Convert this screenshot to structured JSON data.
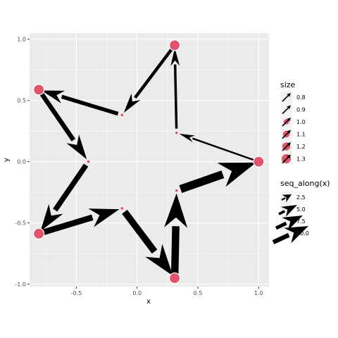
{
  "chart_data": {
    "type": "scatter",
    "xlabel": "x",
    "ylabel": "y",
    "xlim": [
      -0.885,
      1.085
    ],
    "ylim": [
      -1.02,
      1.05
    ],
    "x_ticks": [
      -0.5,
      0.0,
      0.5,
      1.0
    ],
    "x_tick_labels": [
      "-0.5",
      "0.0",
      "0.5",
      "1.0"
    ],
    "y_ticks": [
      -1.0,
      -0.5,
      0.0,
      0.5,
      1.0
    ],
    "y_tick_labels": [
      "-1.0",
      "-0.5",
      "0.0",
      "0.5",
      "1.0"
    ],
    "grid": true,
    "point_color": "#DF536B",
    "arrow_color": "#000000",
    "panel_color": "#EBEBEB",
    "points": [
      {
        "x": 1.0,
        "y": 0.0,
        "size": 1.3
      },
      {
        "x": 0.3244,
        "y": 0.2357,
        "size": 0.7
      },
      {
        "x": 0.309,
        "y": 0.951,
        "size": 1.3
      },
      {
        "x": -0.1239,
        "y": 0.3813,
        "size": 0.7
      },
      {
        "x": -0.809,
        "y": 0.5878,
        "size": 1.3
      },
      {
        "x": -0.4009,
        "y": 0.0,
        "size": 0.7
      },
      {
        "x": -0.809,
        "y": -0.5878,
        "size": 1.3
      },
      {
        "x": -0.1239,
        "y": -0.3813,
        "size": 0.7
      },
      {
        "x": 0.309,
        "y": -0.951,
        "size": 1.3
      },
      {
        "x": 0.3244,
        "y": -0.2357,
        "size": 0.7
      }
    ],
    "arrows": [
      {
        "from": [
          1.0,
          0.0
        ],
        "to": [
          0.3244,
          0.2357
        ],
        "seq": 1
      },
      {
        "from": [
          0.3244,
          0.2357
        ],
        "to": [
          0.309,
          0.951
        ],
        "seq": 2
      },
      {
        "from": [
          0.309,
          0.951
        ],
        "to": [
          -0.1239,
          0.3813
        ],
        "seq": 3
      },
      {
        "from": [
          -0.1239,
          0.3813
        ],
        "to": [
          -0.809,
          0.5878
        ],
        "seq": 4
      },
      {
        "from": [
          -0.809,
          0.5878
        ],
        "to": [
          -0.4009,
          0.0
        ],
        "seq": 5
      },
      {
        "from": [
          -0.4009,
          0.0
        ],
        "to": [
          -0.809,
          -0.5878
        ],
        "seq": 6
      },
      {
        "from": [
          -0.809,
          -0.5878
        ],
        "to": [
          -0.1239,
          -0.3813
        ],
        "seq": 7
      },
      {
        "from": [
          -0.1239,
          -0.3813
        ],
        "to": [
          0.309,
          -0.951
        ],
        "seq": 8
      },
      {
        "from": [
          0.309,
          -0.951
        ],
        "to": [
          0.3244,
          -0.2357
        ],
        "seq": 9
      },
      {
        "from": [
          0.3244,
          -0.2357
        ],
        "to": [
          1.0,
          0.0
        ],
        "seq": 10
      }
    ],
    "legend": {
      "placement": "right",
      "size": {
        "title": "size",
        "entries": [
          {
            "label": "0.8",
            "value": 0.8
          },
          {
            "label": "0.9",
            "value": 0.9
          },
          {
            "label": "1.0",
            "value": 1.0
          },
          {
            "label": "1.1",
            "value": 1.1
          },
          {
            "label": "1.2",
            "value": 1.2
          },
          {
            "label": "1.3",
            "value": 1.3
          }
        ]
      },
      "seq": {
        "title": "seq_along(x)",
        "entries": [
          {
            "label": "2.5",
            "value": 2.5
          },
          {
            "label": "5.0",
            "value": 5.0
          },
          {
            "label": "7.5",
            "value": 7.5
          },
          {
            "label": "10.0",
            "value": 10.0
          }
        ]
      }
    }
  }
}
